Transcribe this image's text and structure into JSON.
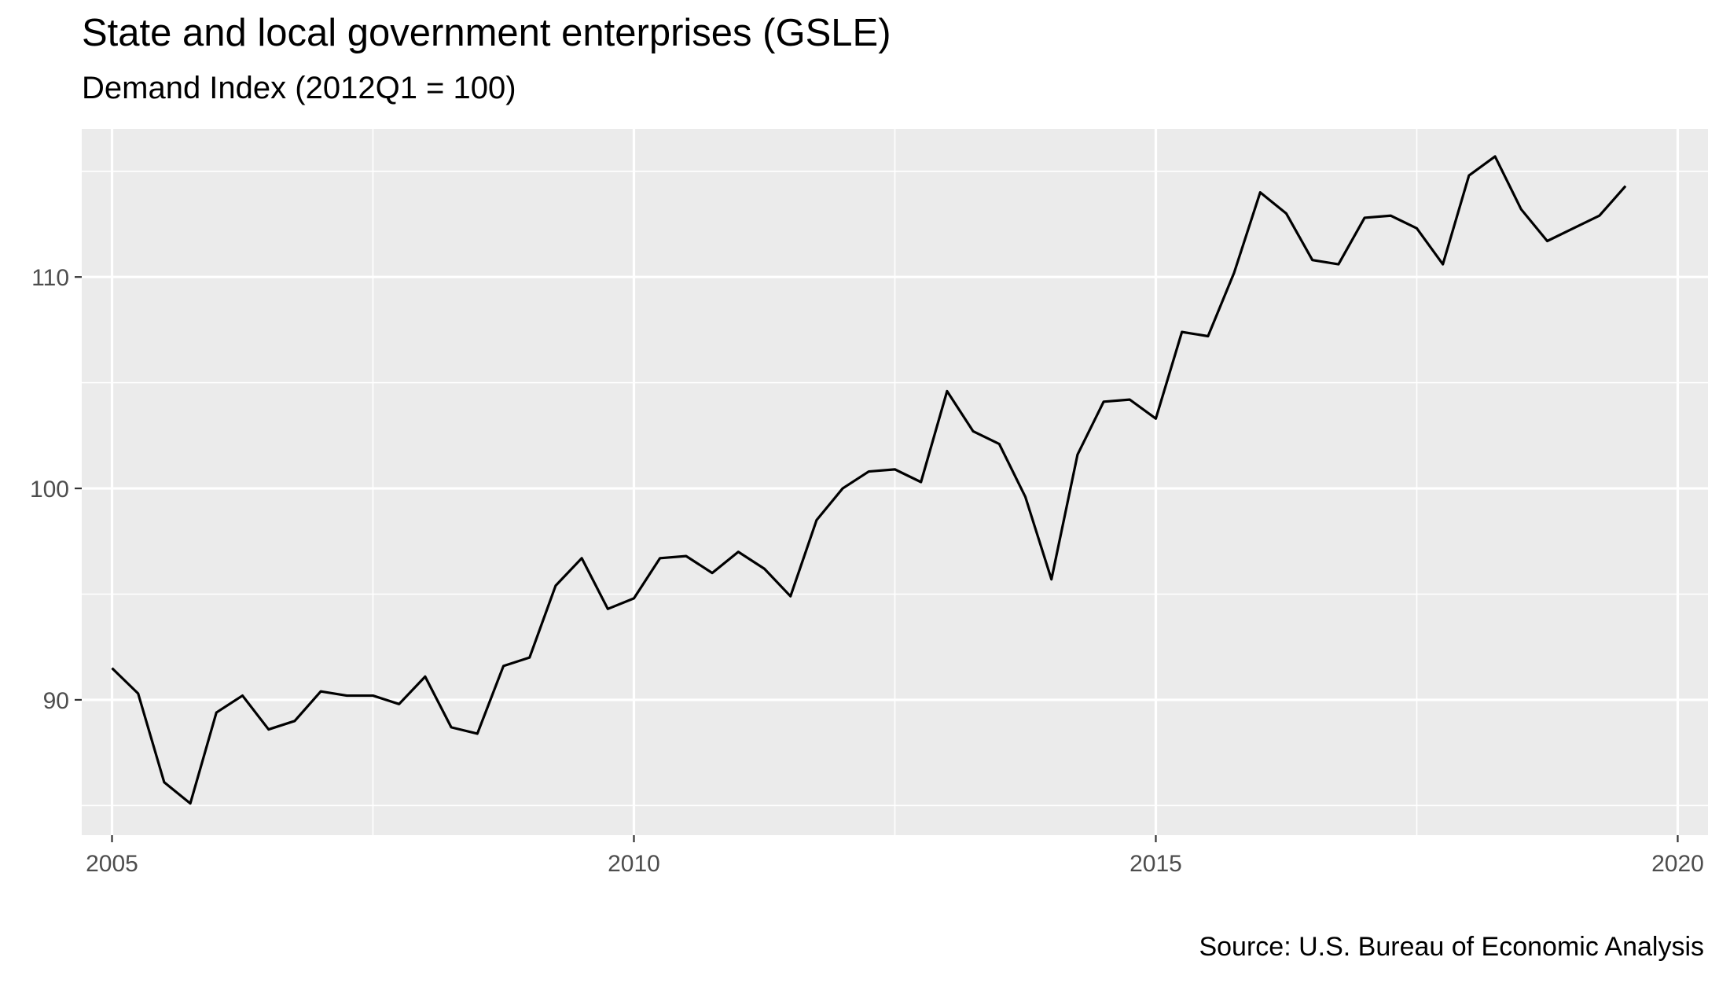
{
  "chart_data": {
    "type": "line",
    "title": "State and local government enterprises (GSLE)",
    "subtitle": "Demand Index (2012Q1 = 100)",
    "caption": "Source: U.S. Bureau of Economic Analysis",
    "xlabel": "",
    "ylabel": "",
    "xlim": [
      2004.71,
      2020.29
    ],
    "ylim": [
      83.6,
      117.0
    ],
    "x_ticks": [
      2005,
      2010,
      2015,
      2020
    ],
    "y_ticks": [
      90,
      100,
      110
    ],
    "grid": true,
    "background": "#ebebeb",
    "line_color": "#000000",
    "series": [
      {
        "x": [
          2005.0,
          2005.25,
          2005.5,
          2005.75,
          2006.0,
          2006.25,
          2006.5,
          2006.75,
          2007.0,
          2007.25,
          2007.5,
          2007.75,
          2008.0,
          2008.25,
          2008.5,
          2008.75,
          2009.0,
          2009.25,
          2009.5,
          2009.75,
          2010.0,
          2010.25,
          2010.5,
          2010.75,
          2011.0,
          2011.25,
          2011.5,
          2011.75,
          2012.0,
          2012.25,
          2012.5,
          2012.75,
          2013.0,
          2013.25,
          2013.5,
          2013.75,
          2014.0,
          2014.25,
          2014.5,
          2014.75,
          2015.0,
          2015.25,
          2015.5,
          2015.75,
          2016.0,
          2016.25,
          2016.5,
          2016.75,
          2017.0,
          2017.25,
          2017.5,
          2017.75,
          2018.0,
          2018.25,
          2018.5,
          2018.75,
          2019.0,
          2019.25,
          2019.5
        ],
        "values": [
          91.5,
          90.3,
          86.1,
          85.1,
          89.4,
          90.2,
          88.6,
          89.0,
          90.4,
          90.2,
          90.2,
          89.8,
          91.1,
          88.7,
          88.4,
          91.6,
          92.0,
          95.4,
          96.7,
          94.3,
          94.8,
          96.7,
          96.8,
          96.0,
          97.0,
          96.2,
          94.9,
          98.5,
          100.0,
          100.8,
          100.9,
          100.3,
          104.6,
          102.7,
          102.1,
          99.6,
          95.7,
          101.6,
          104.1,
          104.2,
          103.3,
          107.4,
          107.2,
          110.2,
          114.0,
          113.0,
          110.8,
          110.6,
          112.8,
          112.9,
          112.3,
          110.6,
          114.8,
          115.7,
          113.2,
          111.7,
          112.3,
          112.9,
          114.3
        ]
      }
    ]
  }
}
